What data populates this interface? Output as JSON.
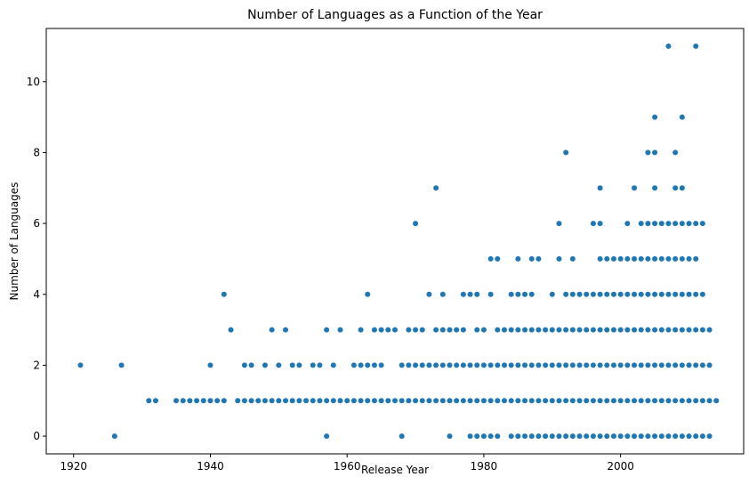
{
  "chart_data": {
    "type": "scatter",
    "title": "Number of Languages as a Function of the Year",
    "xlabel": "Release Year",
    "ylabel": "Number of Languages",
    "xlim": [
      1916,
      2018
    ],
    "ylim": [
      -0.5,
      11.5
    ],
    "xticks": [
      1920,
      1940,
      1960,
      1980,
      2000
    ],
    "yticks": [
      0,
      2,
      4,
      6,
      8,
      10
    ],
    "grid": false,
    "legend": "none",
    "marker_color": "#1f77b4",
    "points": [
      [
        1921,
        2
      ],
      [
        1926,
        0
      ],
      [
        1927,
        2
      ],
      [
        1931,
        1
      ],
      [
        1932,
        1
      ],
      [
        1935,
        1
      ],
      [
        1936,
        1
      ],
      [
        1937,
        1
      ],
      [
        1938,
        1
      ],
      [
        1939,
        1
      ],
      [
        1940,
        1
      ],
      [
        1940,
        2
      ],
      [
        1941,
        1
      ],
      [
        1942,
        1
      ],
      [
        1942,
        4
      ],
      [
        1943,
        3
      ],
      [
        1944,
        1
      ],
      [
        1945,
        1
      ],
      [
        1945,
        2
      ],
      [
        1946,
        1
      ],
      [
        1946,
        2
      ],
      [
        1947,
        1
      ],
      [
        1948,
        1
      ],
      [
        1948,
        2
      ],
      [
        1949,
        1
      ],
      [
        1949,
        3
      ],
      [
        1950,
        1
      ],
      [
        1950,
        2
      ],
      [
        1951,
        1
      ],
      [
        1951,
        3
      ],
      [
        1952,
        1
      ],
      [
        1952,
        2
      ],
      [
        1953,
        1
      ],
      [
        1953,
        2
      ],
      [
        1954,
        1
      ],
      [
        1955,
        1
      ],
      [
        1955,
        2
      ],
      [
        1956,
        1
      ],
      [
        1956,
        2
      ],
      [
        1957,
        0
      ],
      [
        1957,
        1
      ],
      [
        1957,
        3
      ],
      [
        1958,
        1
      ],
      [
        1958,
        2
      ],
      [
        1959,
        1
      ],
      [
        1959,
        3
      ],
      [
        1960,
        1
      ],
      [
        1961,
        1
      ],
      [
        1961,
        2
      ],
      [
        1962,
        1
      ],
      [
        1962,
        2
      ],
      [
        1962,
        3
      ],
      [
        1963,
        1
      ],
      [
        1963,
        2
      ],
      [
        1963,
        4
      ],
      [
        1964,
        1
      ],
      [
        1964,
        2
      ],
      [
        1964,
        3
      ],
      [
        1965,
        1
      ],
      [
        1965,
        2
      ],
      [
        1965,
        3
      ],
      [
        1966,
        1
      ],
      [
        1966,
        3
      ],
      [
        1967,
        1
      ],
      [
        1967,
        3
      ],
      [
        1968,
        0
      ],
      [
        1968,
        1
      ],
      [
        1968,
        2
      ],
      [
        1969,
        1
      ],
      [
        1969,
        2
      ],
      [
        1969,
        3
      ],
      [
        1970,
        1
      ],
      [
        1970,
        2
      ],
      [
        1970,
        3
      ],
      [
        1970,
        6
      ],
      [
        1971,
        1
      ],
      [
        1971,
        2
      ],
      [
        1971,
        3
      ],
      [
        1972,
        1
      ],
      [
        1972,
        2
      ],
      [
        1972,
        4
      ],
      [
        1973,
        1
      ],
      [
        1973,
        2
      ],
      [
        1973,
        3
      ],
      [
        1973,
        7
      ],
      [
        1974,
        1
      ],
      [
        1974,
        2
      ],
      [
        1974,
        3
      ],
      [
        1974,
        4
      ],
      [
        1975,
        0
      ],
      [
        1975,
        1
      ],
      [
        1975,
        2
      ],
      [
        1975,
        3
      ],
      [
        1976,
        1
      ],
      [
        1976,
        2
      ],
      [
        1976,
        3
      ],
      [
        1977,
        1
      ],
      [
        1977,
        2
      ],
      [
        1977,
        3
      ],
      [
        1977,
        4
      ],
      [
        1978,
        0
      ],
      [
        1978,
        1
      ],
      [
        1978,
        2
      ],
      [
        1978,
        4
      ],
      [
        1979,
        0
      ],
      [
        1979,
        1
      ],
      [
        1979,
        2
      ],
      [
        1979,
        3
      ],
      [
        1979,
        4
      ],
      [
        1980,
        0
      ],
      [
        1980,
        1
      ],
      [
        1980,
        2
      ],
      [
        1980,
        3
      ],
      [
        1981,
        0
      ],
      [
        1981,
        1
      ],
      [
        1981,
        2
      ],
      [
        1981,
        4
      ],
      [
        1981,
        5
      ],
      [
        1982,
        0
      ],
      [
        1982,
        1
      ],
      [
        1982,
        2
      ],
      [
        1982,
        3
      ],
      [
        1982,
        5
      ],
      [
        1983,
        1
      ],
      [
        1983,
        2
      ],
      [
        1983,
        3
      ],
      [
        1984,
        0
      ],
      [
        1984,
        1
      ],
      [
        1984,
        2
      ],
      [
        1984,
        3
      ],
      [
        1984,
        4
      ],
      [
        1985,
        0
      ],
      [
        1985,
        1
      ],
      [
        1985,
        2
      ],
      [
        1985,
        3
      ],
      [
        1985,
        4
      ],
      [
        1985,
        5
      ],
      [
        1986,
        0
      ],
      [
        1986,
        1
      ],
      [
        1986,
        2
      ],
      [
        1986,
        3
      ],
      [
        1986,
        4
      ],
      [
        1987,
        0
      ],
      [
        1987,
        1
      ],
      [
        1987,
        2
      ],
      [
        1987,
        3
      ],
      [
        1987,
        4
      ],
      [
        1987,
        5
      ],
      [
        1988,
        0
      ],
      [
        1988,
        1
      ],
      [
        1988,
        2
      ],
      [
        1988,
        3
      ],
      [
        1988,
        5
      ],
      [
        1989,
        0
      ],
      [
        1989,
        1
      ],
      [
        1989,
        2
      ],
      [
        1989,
        3
      ],
      [
        1990,
        0
      ],
      [
        1990,
        1
      ],
      [
        1990,
        2
      ],
      [
        1990,
        3
      ],
      [
        1990,
        4
      ],
      [
        1991,
        0
      ],
      [
        1991,
        1
      ],
      [
        1991,
        2
      ],
      [
        1991,
        3
      ],
      [
        1991,
        5
      ],
      [
        1991,
        6
      ],
      [
        1992,
        0
      ],
      [
        1992,
        1
      ],
      [
        1992,
        2
      ],
      [
        1992,
        3
      ],
      [
        1992,
        4
      ],
      [
        1992,
        8
      ],
      [
        1993,
        0
      ],
      [
        1993,
        1
      ],
      [
        1993,
        2
      ],
      [
        1993,
        3
      ],
      [
        1993,
        4
      ],
      [
        1993,
        5
      ],
      [
        1994,
        0
      ],
      [
        1994,
        1
      ],
      [
        1994,
        2
      ],
      [
        1994,
        3
      ],
      [
        1994,
        4
      ],
      [
        1995,
        0
      ],
      [
        1995,
        1
      ],
      [
        1995,
        2
      ],
      [
        1995,
        3
      ],
      [
        1995,
        4
      ],
      [
        1996,
        0
      ],
      [
        1996,
        1
      ],
      [
        1996,
        2
      ],
      [
        1996,
        3
      ],
      [
        1996,
        4
      ],
      [
        1996,
        6
      ],
      [
        1997,
        0
      ],
      [
        1997,
        1
      ],
      [
        1997,
        2
      ],
      [
        1997,
        3
      ],
      [
        1997,
        4
      ],
      [
        1997,
        5
      ],
      [
        1997,
        6
      ],
      [
        1997,
        7
      ],
      [
        1998,
        0
      ],
      [
        1998,
        1
      ],
      [
        1998,
        2
      ],
      [
        1998,
        3
      ],
      [
        1998,
        4
      ],
      [
        1998,
        5
      ],
      [
        1999,
        0
      ],
      [
        1999,
        1
      ],
      [
        1999,
        2
      ],
      [
        1999,
        3
      ],
      [
        1999,
        4
      ],
      [
        1999,
        5
      ],
      [
        2000,
        0
      ],
      [
        2000,
        1
      ],
      [
        2000,
        2
      ],
      [
        2000,
        3
      ],
      [
        2000,
        4
      ],
      [
        2000,
        5
      ],
      [
        2001,
        0
      ],
      [
        2001,
        1
      ],
      [
        2001,
        2
      ],
      [
        2001,
        3
      ],
      [
        2001,
        4
      ],
      [
        2001,
        5
      ],
      [
        2001,
        6
      ],
      [
        2002,
        0
      ],
      [
        2002,
        1
      ],
      [
        2002,
        2
      ],
      [
        2002,
        3
      ],
      [
        2002,
        4
      ],
      [
        2002,
        5
      ],
      [
        2002,
        7
      ],
      [
        2003,
        0
      ],
      [
        2003,
        1
      ],
      [
        2003,
        2
      ],
      [
        2003,
        3
      ],
      [
        2003,
        4
      ],
      [
        2003,
        5
      ],
      [
        2003,
        6
      ],
      [
        2004,
        0
      ],
      [
        2004,
        1
      ],
      [
        2004,
        2
      ],
      [
        2004,
        3
      ],
      [
        2004,
        4
      ],
      [
        2004,
        5
      ],
      [
        2004,
        6
      ],
      [
        2004,
        8
      ],
      [
        2005,
        0
      ],
      [
        2005,
        1
      ],
      [
        2005,
        2
      ],
      [
        2005,
        3
      ],
      [
        2005,
        4
      ],
      [
        2005,
        5
      ],
      [
        2005,
        6
      ],
      [
        2005,
        7
      ],
      [
        2005,
        8
      ],
      [
        2005,
        9
      ],
      [
        2006,
        0
      ],
      [
        2006,
        1
      ],
      [
        2006,
        2
      ],
      [
        2006,
        3
      ],
      [
        2006,
        4
      ],
      [
        2006,
        5
      ],
      [
        2006,
        6
      ],
      [
        2007,
        0
      ],
      [
        2007,
        1
      ],
      [
        2007,
        2
      ],
      [
        2007,
        3
      ],
      [
        2007,
        4
      ],
      [
        2007,
        5
      ],
      [
        2007,
        6
      ],
      [
        2007,
        11
      ],
      [
        2008,
        0
      ],
      [
        2008,
        1
      ],
      [
        2008,
        2
      ],
      [
        2008,
        3
      ],
      [
        2008,
        4
      ],
      [
        2008,
        5
      ],
      [
        2008,
        6
      ],
      [
        2008,
        7
      ],
      [
        2008,
        8
      ],
      [
        2009,
        0
      ],
      [
        2009,
        1
      ],
      [
        2009,
        2
      ],
      [
        2009,
        3
      ],
      [
        2009,
        4
      ],
      [
        2009,
        5
      ],
      [
        2009,
        6
      ],
      [
        2009,
        7
      ],
      [
        2009,
        9
      ],
      [
        2010,
        0
      ],
      [
        2010,
        1
      ],
      [
        2010,
        2
      ],
      [
        2010,
        3
      ],
      [
        2010,
        4
      ],
      [
        2010,
        5
      ],
      [
        2010,
        6
      ],
      [
        2011,
        0
      ],
      [
        2011,
        1
      ],
      [
        2011,
        2
      ],
      [
        2011,
        3
      ],
      [
        2011,
        4
      ],
      [
        2011,
        5
      ],
      [
        2011,
        6
      ],
      [
        2011,
        11
      ],
      [
        2012,
        0
      ],
      [
        2012,
        1
      ],
      [
        2012,
        2
      ],
      [
        2012,
        3
      ],
      [
        2012,
        4
      ],
      [
        2012,
        6
      ],
      [
        2013,
        0
      ],
      [
        2013,
        1
      ],
      [
        2013,
        2
      ],
      [
        2013,
        3
      ],
      [
        2014,
        1
      ]
    ]
  }
}
